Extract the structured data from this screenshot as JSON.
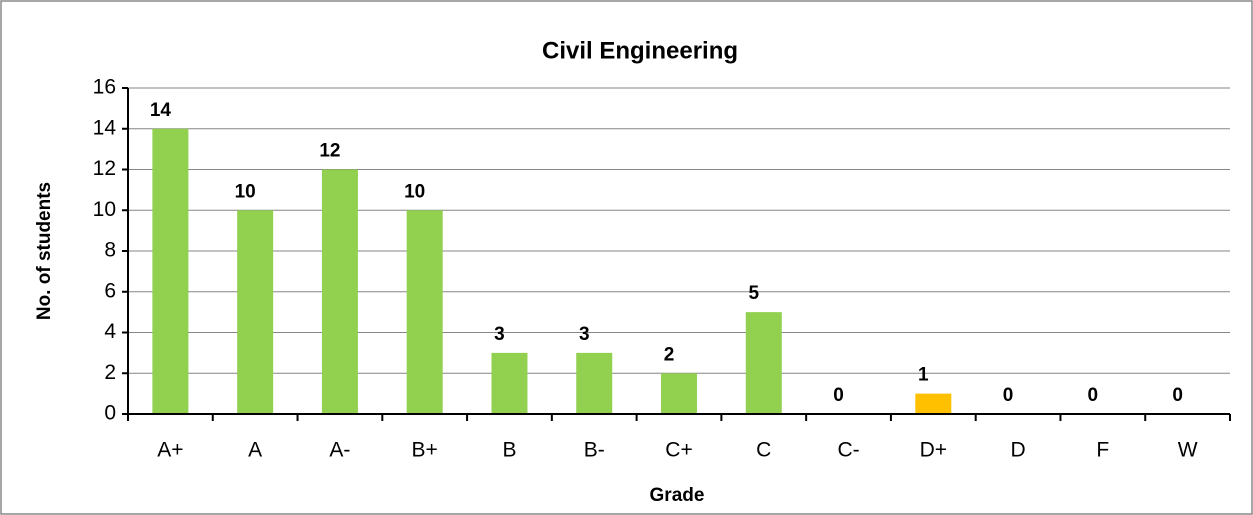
{
  "chart_data": {
    "type": "bar",
    "title": "Civil Engineering",
    "x_label": "Grade",
    "y_label": "No. of students",
    "categories": [
      "A+",
      "A",
      "A-",
      "B+",
      "B",
      "B-",
      "C+",
      "C",
      "C-",
      "D+",
      "D",
      "F",
      "W"
    ],
    "values": [
      14,
      10,
      12,
      10,
      3,
      3,
      2,
      5,
      0,
      1,
      0,
      0,
      0
    ],
    "colors": [
      "#92d050",
      "#92d050",
      "#92d050",
      "#92d050",
      "#92d050",
      "#92d050",
      "#92d050",
      "#92d050",
      "#92d050",
      "#ffc000",
      "#92d050",
      "#92d050",
      "#92d050"
    ],
    "ylim": [
      0,
      16
    ],
    "yticks": [
      0,
      2,
      4,
      6,
      8,
      10,
      12,
      14,
      16
    ],
    "grid": true
  }
}
